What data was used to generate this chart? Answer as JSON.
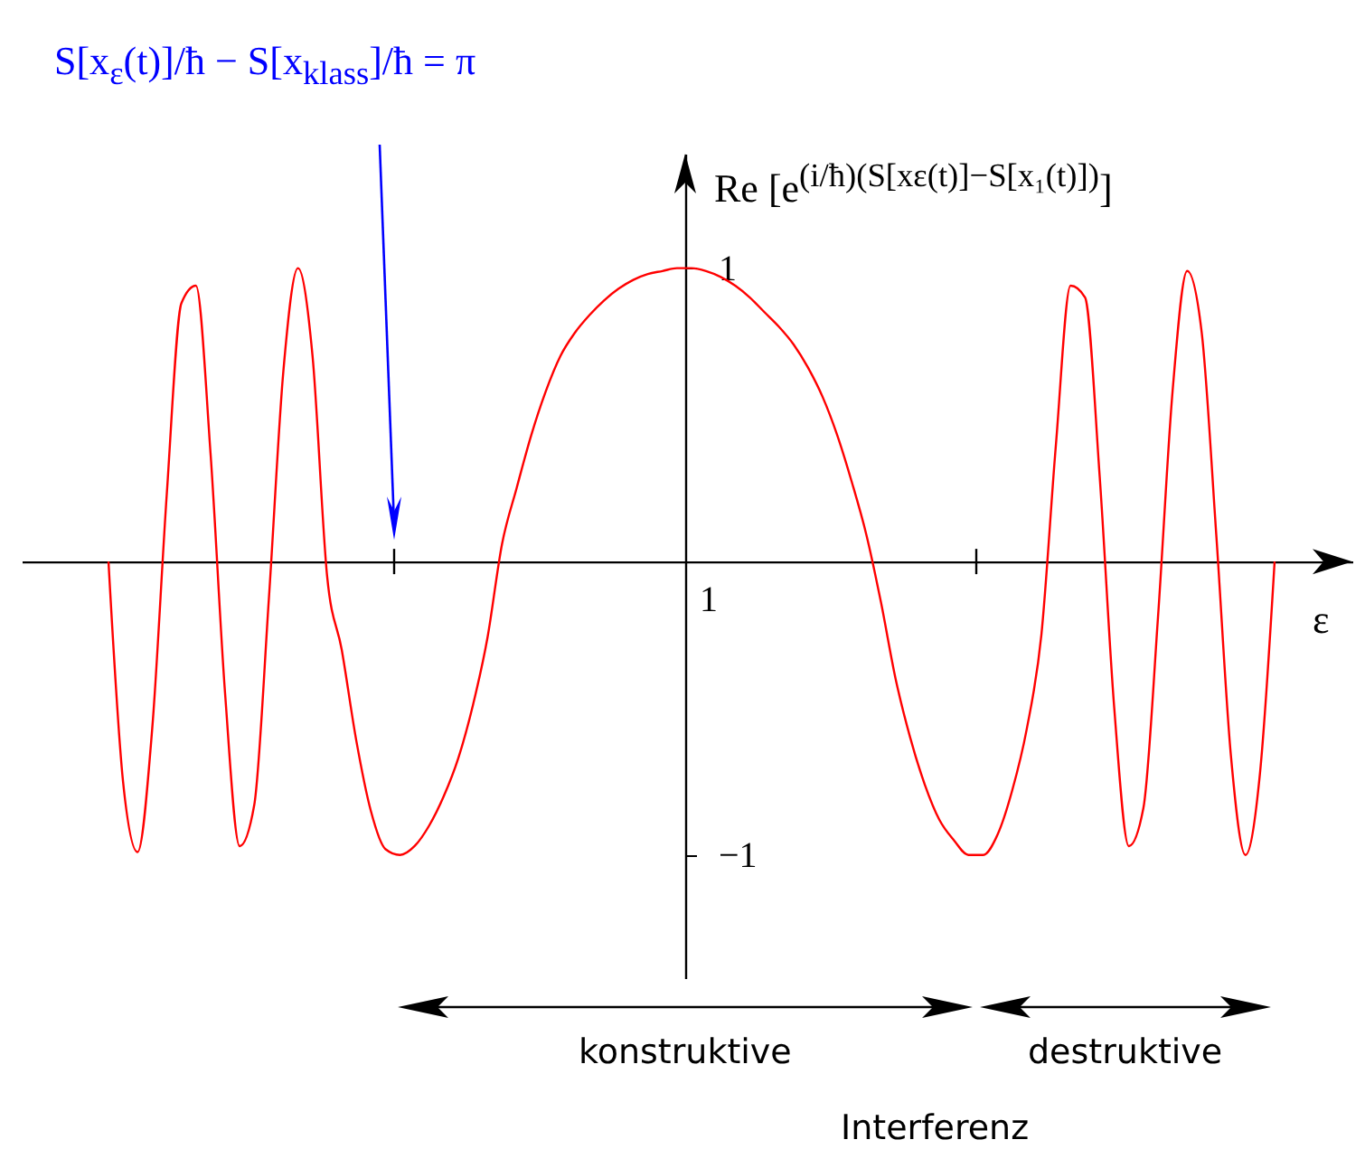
{
  "chart_data": {
    "type": "line",
    "xlabel": "ε",
    "ylabel": "Re [e$^{(i/ħ)(S[xε(t)]−S[x₁(t)])}$]",
    "categories": [
      null,
      null,
      null,
      null,
      null,
      null,
      null,
      null,
      null,
      null,
      null,
      null,
      null,
      null,
      null,
      null,
      null,
      null,
      null,
      null,
      null,
      null,
      null,
      null,
      null,
      null,
      null,
      null,
      null,
      null,
      null,
      null,
      null,
      null,
      null,
      null,
      null,
      null,
      null,
      null,
      null,
      null,
      null,
      null,
      null,
      null,
      null,
      null,
      null,
      null,
      null,
      null,
      null,
      null,
      null,
      null,
      null,
      null,
      null,
      null,
      null,
      null,
      null,
      null,
      null,
      null,
      null,
      null,
      null,
      null,
      null,
      null,
      null,
      null,
      null,
      null,
      null,
      null,
      null,
      null,
      null
    ],
    "ylim": [
      -1.42,
      1.39
    ],
    "yticks": [
      -1,
      1
    ],
    "series": [
      {
        "color": "#ff0000",
        "values": [
          0,
          -0.75,
          -0.99,
          -0.57,
          0.23,
          0.88,
          0.94,
          0.37,
          -0.45,
          -0.97,
          -0.83,
          -0.13,
          0.65,
          1,
          0.7,
          -0.05,
          -0.3,
          -0.61,
          -0.85,
          -0.98,
          -1,
          -0.97,
          -0.9,
          -0.8,
          -0.67,
          -0.49,
          -0.26,
          0.06,
          0.25,
          0.43,
          0.58,
          0.7,
          0.78,
          0.84,
          0.89,
          0.93,
          0.96,
          0.98,
          0.99,
          1,
          1,
          0.99,
          0.97,
          0.94,
          0.9,
          0.85,
          0.8,
          0.74,
          0.66,
          0.56,
          0.43,
          0.27,
          0.09,
          -0.14,
          -0.4,
          -0.6,
          -0.76,
          -0.88,
          -0.95,
          -1,
          -1,
          -0.93,
          -0.78,
          -0.57,
          -0.25,
          0.4,
          0.94,
          0.9,
          0.29,
          -0.5,
          -0.97,
          -0.84,
          -0.19,
          0.58,
          0.99,
          0.78,
          0.09,
          -0.66,
          -1,
          -0.72,
          0
        ]
      }
    ],
    "annotations": [
      "S[x$_{ε}$(t)]/ħ − S[x$_{klass}$]/ħ = π",
      "1",
      "konstruktive",
      "destruktive",
      "Interferenz"
    ]
  }
}
